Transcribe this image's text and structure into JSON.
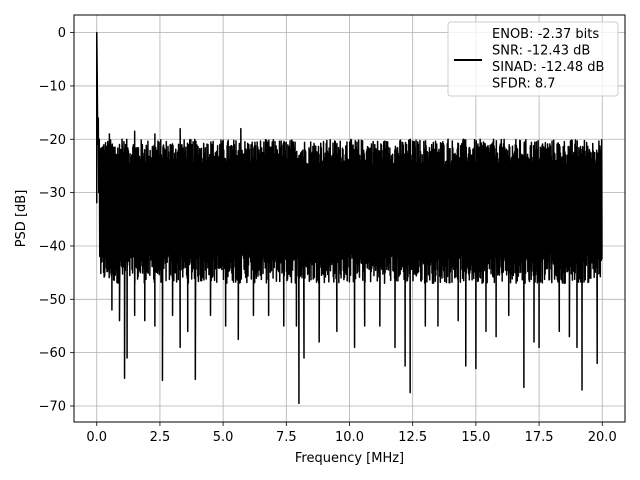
{
  "chart_data": {
    "type": "line",
    "xlabel": "Frequency [MHz]",
    "ylabel": "PSD [dB]",
    "xlim": [
      -0.9,
      20.9
    ],
    "ylim": [
      -73.0,
      3.3
    ],
    "xticks": [
      0.0,
      2.5,
      5.0,
      7.5,
      10.0,
      12.5,
      15.0,
      17.5,
      20.0
    ],
    "xtick_labels": [
      "0.0",
      "2.5",
      "5.0",
      "7.5",
      "10.0",
      "12.5",
      "15.0",
      "17.5",
      "20.0"
    ],
    "yticks": [
      0,
      -10,
      -20,
      -30,
      -40,
      -50,
      -60,
      -70
    ],
    "ytick_labels": [
      "0",
      "−10",
      "−20",
      "−30",
      "−40",
      "−50",
      "−60",
      "−70"
    ],
    "grid": true,
    "legend_position": "top-right",
    "line_color": "#000000",
    "series": [
      {
        "legend_lines": [
          "ENOB: -2.37 bits",
          "SNR: -12.43 dB",
          "SINAD: -12.48 dB",
          "SFDR: 8.7"
        ],
        "description_points": {
          "peak": [
            0.0,
            0.0
          ],
          "noise_floor_upper": -23,
          "noise_floor_lower": -45,
          "noise_max_spikes": -18
        },
        "dips": [
          [
            0.6,
            -52
          ],
          [
            0.9,
            -54
          ],
          [
            1.1,
            -64.8
          ],
          [
            1.2,
            -61
          ],
          [
            1.5,
            -53
          ],
          [
            1.9,
            -54
          ],
          [
            2.3,
            -55
          ],
          [
            2.6,
            -65.2
          ],
          [
            3.0,
            -53
          ],
          [
            3.3,
            -59
          ],
          [
            3.6,
            -56
          ],
          [
            3.9,
            -65
          ],
          [
            4.5,
            -53
          ],
          [
            5.1,
            -55
          ],
          [
            5.6,
            -57.5
          ],
          [
            6.2,
            -53
          ],
          [
            6.8,
            -53
          ],
          [
            7.4,
            -55
          ],
          [
            7.9,
            -55
          ],
          [
            8.0,
            -69.5
          ],
          [
            8.2,
            -61
          ],
          [
            8.8,
            -58
          ],
          [
            9.5,
            -56
          ],
          [
            10.2,
            -59
          ],
          [
            10.6,
            -55
          ],
          [
            11.2,
            -55
          ],
          [
            11.8,
            -59
          ],
          [
            12.2,
            -62.5
          ],
          [
            12.4,
            -67.5
          ],
          [
            13.0,
            -55
          ],
          [
            13.5,
            -55
          ],
          [
            14.3,
            -54
          ],
          [
            14.6,
            -62.5
          ],
          [
            15.0,
            -63
          ],
          [
            15.4,
            -56
          ],
          [
            15.8,
            -57
          ],
          [
            16.3,
            -53
          ],
          [
            16.9,
            -66.5
          ],
          [
            17.3,
            -58
          ],
          [
            17.5,
            -59
          ],
          [
            18.3,
            -56
          ],
          [
            18.7,
            -57
          ],
          [
            19.0,
            -59
          ],
          [
            19.2,
            -67
          ],
          [
            19.8,
            -62
          ]
        ],
        "spikes": [
          [
            0.5,
            -19
          ],
          [
            1.0,
            -20
          ],
          [
            1.5,
            -18.5
          ],
          [
            2.3,
            -19
          ],
          [
            3.3,
            -18
          ],
          [
            3.6,
            -21
          ],
          [
            4.4,
            -21
          ],
          [
            5.7,
            -18
          ],
          [
            6.9,
            -21.5
          ],
          [
            8.6,
            -21
          ],
          [
            9.9,
            -20.5
          ],
          [
            11.0,
            -21
          ],
          [
            12.4,
            -20
          ],
          [
            13.9,
            -20
          ],
          [
            14.5,
            -20
          ],
          [
            15.3,
            -20.5
          ],
          [
            16.0,
            -21
          ],
          [
            17.2,
            -21.5
          ],
          [
            18.8,
            -21.5
          ],
          [
            19.7,
            -22.5
          ]
        ]
      }
    ]
  }
}
